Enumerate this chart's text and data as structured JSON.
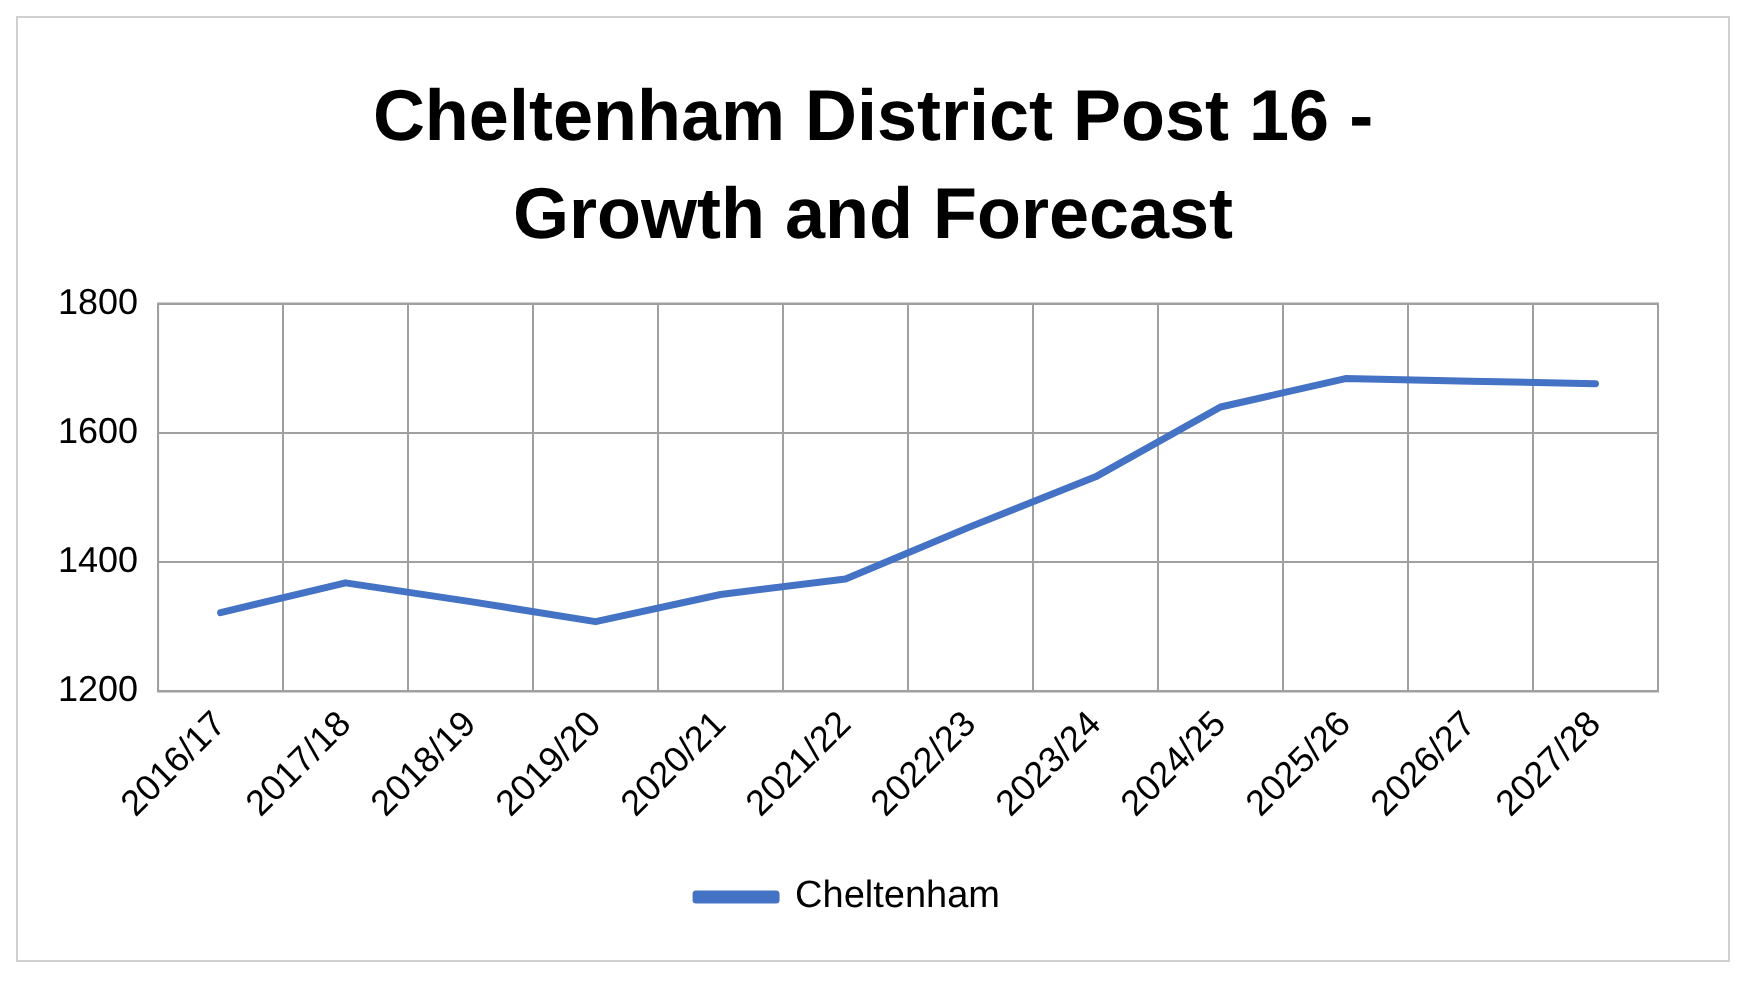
{
  "chart_data": {
    "type": "line",
    "title": "Cheltenham District Post 16 - Growth and Forecast",
    "categories": [
      "2016/17",
      "2017/18",
      "2018/19",
      "2019/20",
      "2020/21",
      "2021/22",
      "2022/23",
      "2023/24",
      "2024/25",
      "2025/26",
      "2026/27",
      "2027/28"
    ],
    "series": [
      {
        "name": "Cheltenham",
        "color": "#4472c4",
        "values": [
          1322,
          1368,
          1339,
          1308,
          1350,
          1374,
          1455,
          1532,
          1640,
          1684,
          1680,
          1676
        ]
      }
    ],
    "ylim": [
      1200,
      1800
    ],
    "yticks": [
      1200,
      1400,
      1600,
      1800
    ],
    "grid": true,
    "legend": "bottom",
    "marker": "none",
    "line_style": "solid"
  }
}
